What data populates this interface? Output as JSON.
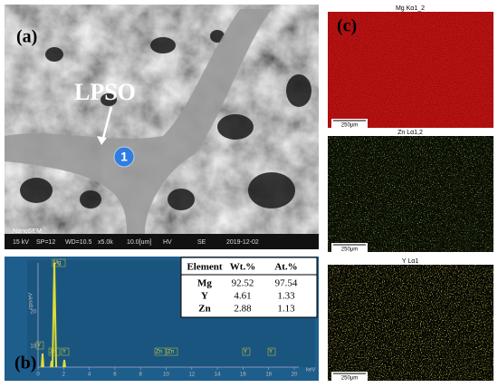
{
  "panel_a": {
    "label": "(a)",
    "annotation": "LPSO",
    "point": "1",
    "brand": "NanoSEM",
    "info_bar": [
      "15 kV",
      "SP=12",
      "WD=10.5",
      "x5.0k",
      "10.0[um]",
      "HV",
      "SE",
      "2019-12-02"
    ]
  },
  "panel_b": {
    "label": "(b)",
    "y_axis_label": "cps/eV",
    "x_axis_label": "keV",
    "y_ticks": [
      "10",
      "20"
    ],
    "x_ticks": [
      "0",
      "2",
      "4",
      "6",
      "8",
      "10",
      "12",
      "14",
      "16",
      "18",
      "20"
    ],
    "peaks": [
      "Mg",
      "Y",
      "Zn",
      "Y",
      "Zn",
      "Zn",
      "Y",
      "Y"
    ],
    "table": {
      "header": [
        "Element",
        "Wt.%",
        "At.%"
      ],
      "rows": [
        [
          "Mg",
          "92.52",
          "97.54"
        ],
        [
          "Y",
          "4.61",
          "1.33"
        ],
        [
          "Zn",
          "2.88",
          "1.13"
        ]
      ]
    }
  },
  "panel_c": {
    "label": "(c)",
    "maps": [
      {
        "title": "Mg Kα1_2",
        "scale": "250μm"
      },
      {
        "title": "Zn Lα1,2",
        "scale": "250μm"
      },
      {
        "title": "Y Lα1",
        "scale": "250μm"
      }
    ]
  }
}
